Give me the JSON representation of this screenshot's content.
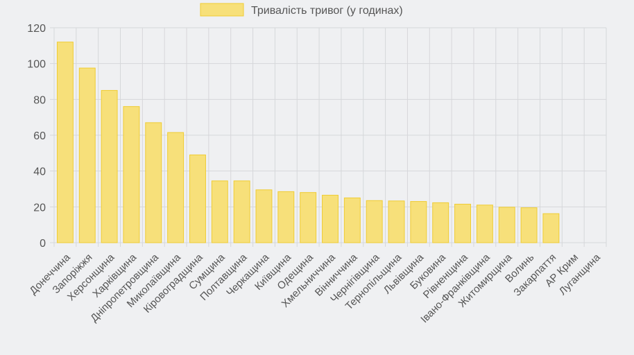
{
  "colors": {
    "background": "#eff0f2",
    "grid": "#d6d7da",
    "bar_fill": "#f7e07a",
    "bar_stroke": "#efcc33",
    "text": "#555555"
  },
  "chart_data": {
    "type": "bar",
    "title": "",
    "xlabel": "",
    "ylabel": "",
    "ylim": [
      0,
      120
    ],
    "yticks": [
      0,
      20,
      40,
      60,
      80,
      100,
      120
    ],
    "grid": true,
    "legend_position": "top-center",
    "categories": [
      "Донеччина",
      "Запоріжжя",
      "Херсонщина",
      "Харківщина",
      "Дніпропетровщина",
      "Миколаївщина",
      "Кіровоградщина",
      "Сумщина",
      "Полтавщина",
      "Черкащина",
      "Київщина",
      "Одещина",
      "Хмельниччина",
      "Вінниччина",
      "Чернігівщина",
      "Тернопільщина",
      "Львівщина",
      "Буковина",
      "Рівненщина",
      "Івано-Франківщина",
      "Житомирщина",
      "Волинь",
      "Закарпаття",
      "АР Крим",
      "Луганщина"
    ],
    "series": [
      {
        "name": "Тривалість тривог (у годинах)",
        "values": [
          112,
          97.5,
          85,
          76,
          67,
          61.5,
          49,
          34.5,
          34.5,
          29.5,
          28.5,
          28,
          26.5,
          25,
          23.5,
          23.3,
          23,
          22.3,
          21.5,
          21,
          19.8,
          19.5,
          16.2,
          0,
          0
        ]
      }
    ]
  }
}
